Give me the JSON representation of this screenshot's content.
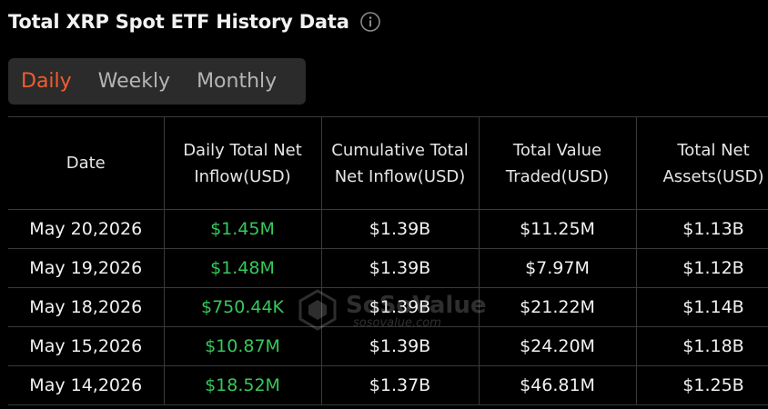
{
  "header": {
    "title": "Total XRP Spot ETF History Data",
    "info_icon": "info-circle-icon"
  },
  "tabs": [
    {
      "label": "Daily",
      "active": true
    },
    {
      "label": "Weekly",
      "active": false
    },
    {
      "label": "Monthly",
      "active": false
    }
  ],
  "colors": {
    "accent": "#f25c2f",
    "positive": "#36c85b",
    "background": "#000000",
    "tab_bar": "#2b2b2b"
  },
  "table": {
    "columns": [
      "Date",
      "Daily Total Net Inflow(USD)",
      "Cumulative Total Net Inflow(USD)",
      "Total Value Traded(USD)",
      "Total Net Assets(USD)"
    ],
    "rows": [
      {
        "date": "May 20,2026",
        "daily_inflow": "$1.45M",
        "cumulative": "$1.39B",
        "traded": "$11.25M",
        "assets": "$1.13B"
      },
      {
        "date": "May 19,2026",
        "daily_inflow": "$1.48M",
        "cumulative": "$1.39B",
        "traded": "$7.97M",
        "assets": "$1.12B"
      },
      {
        "date": "May 18,2026",
        "daily_inflow": "$750.44K",
        "cumulative": "$1.39B",
        "traded": "$21.22M",
        "assets": "$1.14B"
      },
      {
        "date": "May 15,2026",
        "daily_inflow": "$10.87M",
        "cumulative": "$1.39B",
        "traded": "$24.20M",
        "assets": "$1.18B"
      },
      {
        "date": "May 14,2026",
        "daily_inflow": "$18.52M",
        "cumulative": "$1.37B",
        "traded": "$46.81M",
        "assets": "$1.25B"
      }
    ]
  },
  "watermark": {
    "brand": "SoSoValue",
    "url": "sosovalue.com",
    "icon": "sosovalue-logo-icon"
  }
}
